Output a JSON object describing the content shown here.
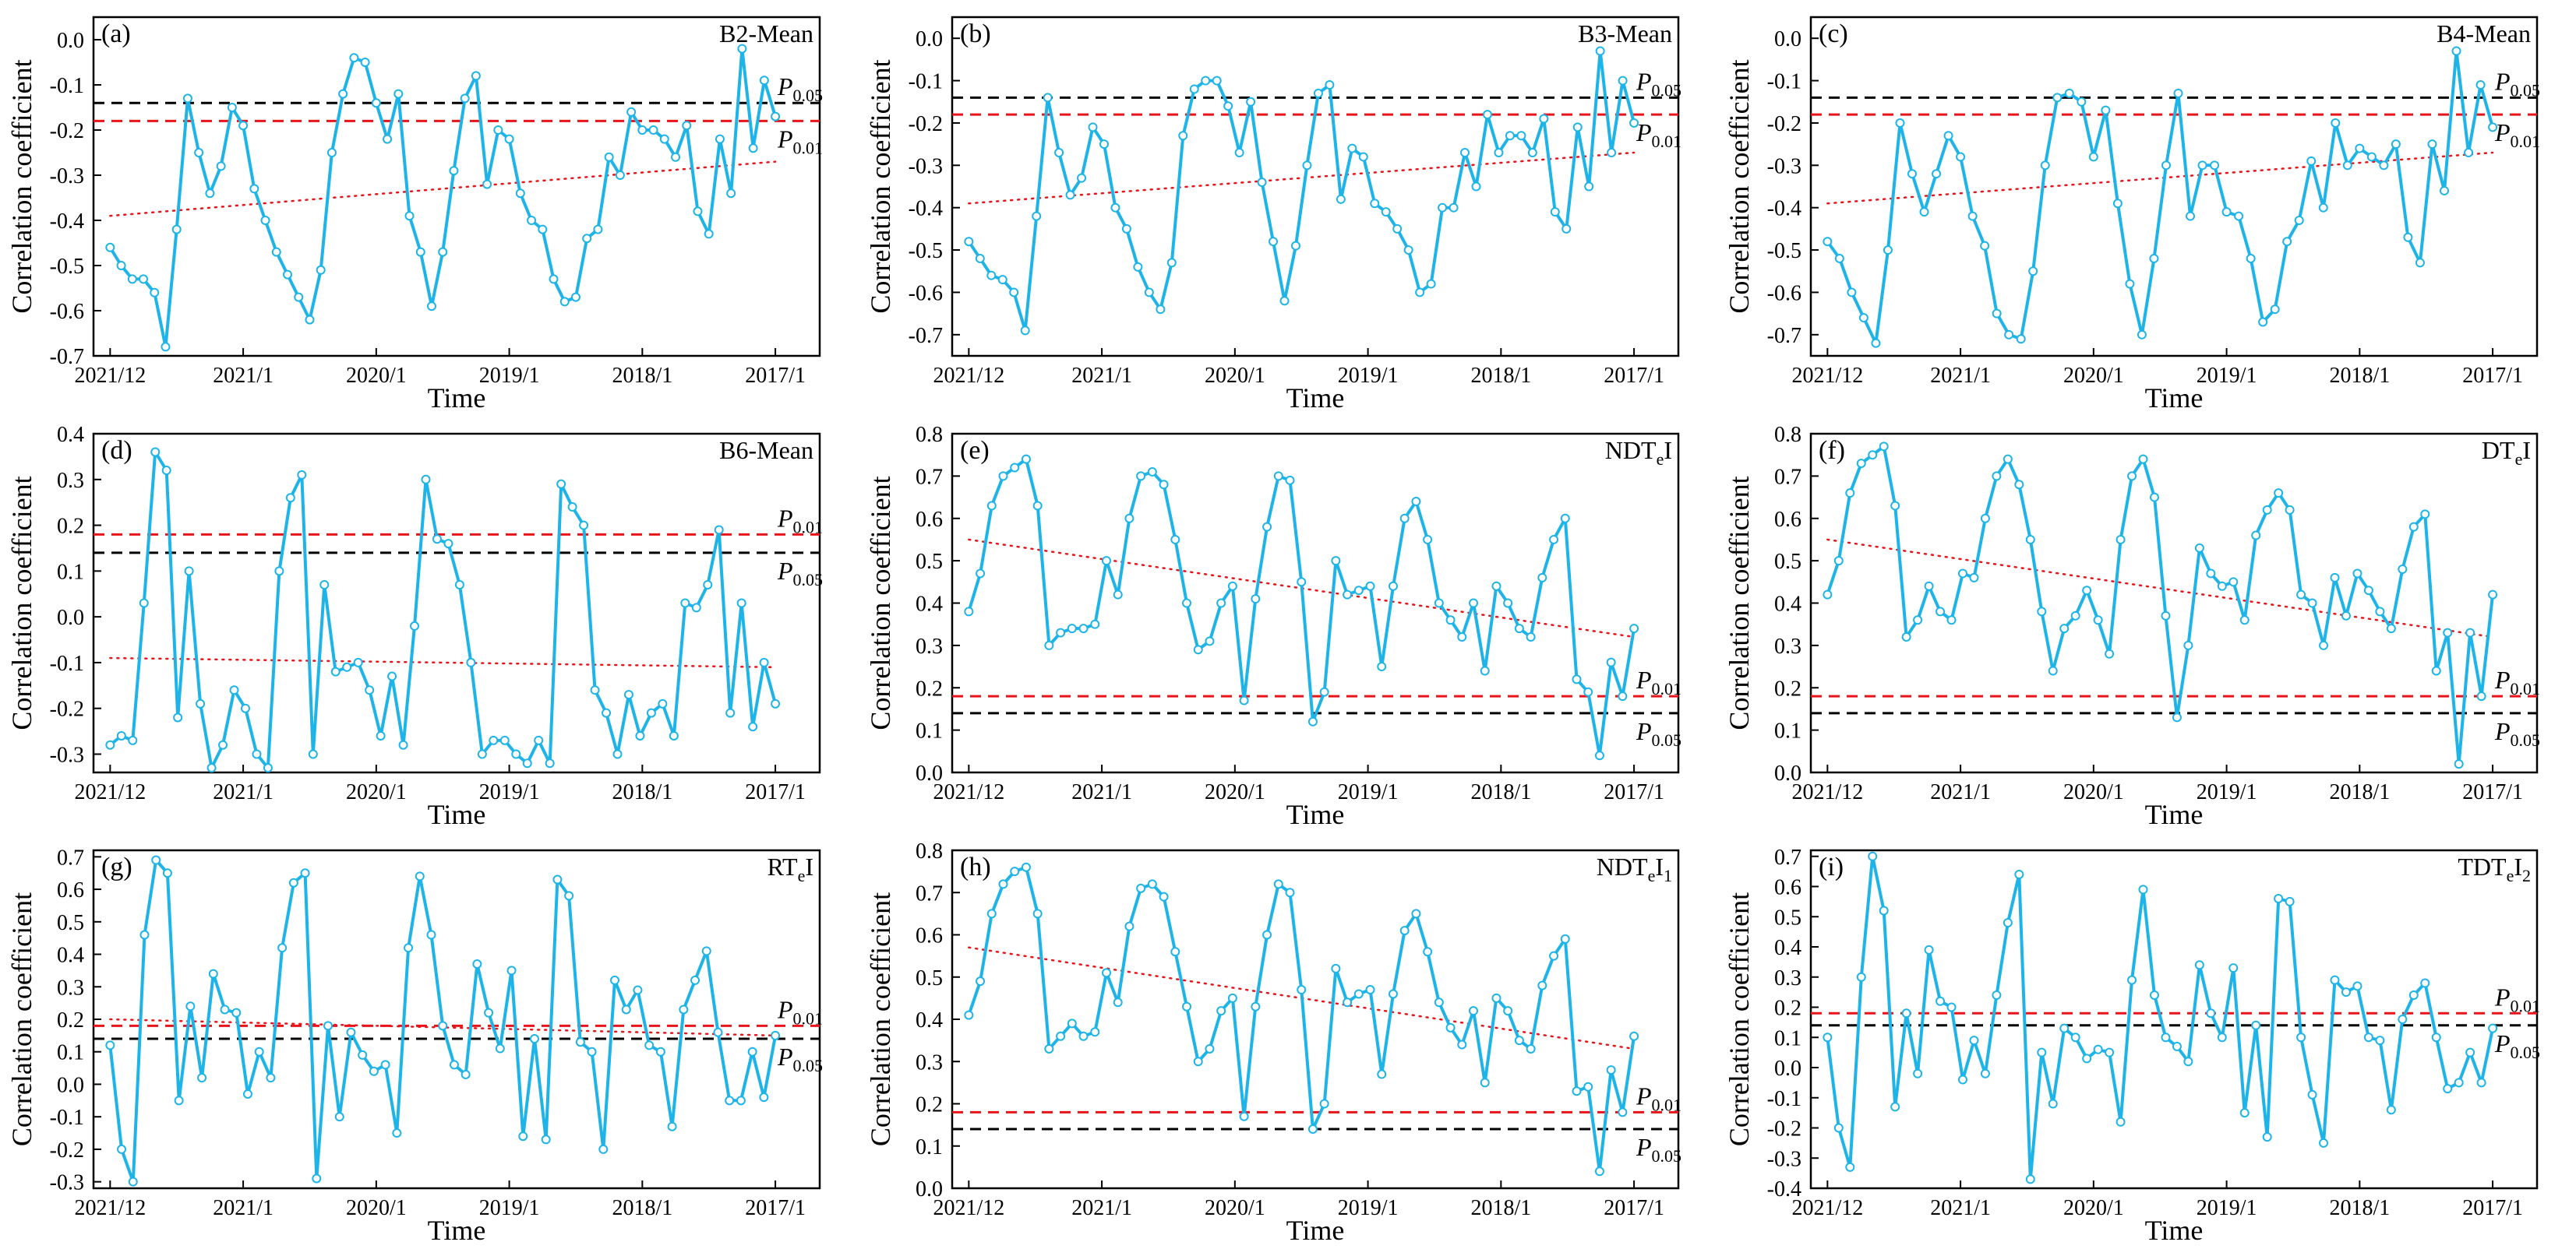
{
  "axis_labels": {
    "x": "Time",
    "y": "Correlation coefficient"
  },
  "significance": {
    "p05": "0.05",
    "p01": "0.01",
    "p_letter": "P"
  },
  "colors": {
    "series": "#1fb4e8",
    "trend": "#e8141a",
    "p01": "#e8141a",
    "p05": "#000000"
  },
  "chart_data": [
    {
      "type": "line",
      "tag": "(a)",
      "name": "B2-Mean",
      "p_side": "above",
      "ylim": [
        -0.7,
        0.05
      ],
      "yticks": [
        -0.7,
        -0.6,
        -0.5,
        -0.4,
        -0.3,
        -0.2,
        -0.1,
        0.0
      ],
      "xticks": [
        {
          "x": 0,
          "label": "2021/12"
        },
        {
          "x": 12,
          "label": "2021/1"
        },
        {
          "x": 24,
          "label": "2020/1"
        },
        {
          "x": 36,
          "label": "2019/1"
        },
        {
          "x": 48,
          "label": "2018/1"
        },
        {
          "x": 60,
          "label": "2017/1"
        }
      ],
      "p05": -0.14,
      "p01": -0.18,
      "trend": [
        -0.39,
        -0.27
      ],
      "values": [
        -0.46,
        -0.5,
        -0.53,
        -0.53,
        -0.56,
        -0.68,
        -0.42,
        -0.13,
        -0.25,
        -0.34,
        -0.28,
        -0.15,
        -0.19,
        -0.33,
        -0.4,
        -0.47,
        -0.52,
        -0.57,
        -0.62,
        -0.51,
        -0.25,
        -0.12,
        -0.04,
        -0.05,
        -0.14,
        -0.22,
        -0.12,
        -0.39,
        -0.47,
        -0.59,
        -0.47,
        -0.29,
        -0.13,
        -0.08,
        -0.32,
        -0.2,
        -0.22,
        -0.34,
        -0.4,
        -0.42,
        -0.53,
        -0.58,
        -0.57,
        -0.44,
        -0.42,
        -0.26,
        -0.3,
        -0.16,
        -0.2,
        -0.2,
        -0.22,
        -0.26,
        -0.19,
        -0.38,
        -0.43,
        -0.22,
        -0.34,
        -0.02,
        -0.24,
        -0.09,
        -0.17
      ]
    },
    {
      "type": "line",
      "tag": "(b)",
      "name": "B3-Mean",
      "p_side": "above",
      "ylim": [
        -0.75,
        0.05
      ],
      "yticks": [
        -0.7,
        -0.6,
        -0.5,
        -0.4,
        -0.3,
        -0.2,
        -0.1,
        0.0
      ],
      "xticks": [
        {
          "x": 0,
          "label": "2021/12"
        },
        {
          "x": 12,
          "label": "2021/1"
        },
        {
          "x": 24,
          "label": "2020/1"
        },
        {
          "x": 36,
          "label": "2019/1"
        },
        {
          "x": 48,
          "label": "2018/1"
        },
        {
          "x": 60,
          "label": "2017/1"
        }
      ],
      "p05": -0.14,
      "p01": -0.18,
      "trend": [
        -0.39,
        -0.27
      ],
      "values": [
        -0.48,
        -0.52,
        -0.56,
        -0.57,
        -0.6,
        -0.69,
        -0.42,
        -0.14,
        -0.27,
        -0.37,
        -0.33,
        -0.21,
        -0.25,
        -0.4,
        -0.45,
        -0.54,
        -0.6,
        -0.64,
        -0.53,
        -0.23,
        -0.12,
        -0.1,
        -0.1,
        -0.16,
        -0.27,
        -0.15,
        -0.34,
        -0.48,
        -0.62,
        -0.49,
        -0.3,
        -0.13,
        -0.11,
        -0.38,
        -0.26,
        -0.28,
        -0.39,
        -0.41,
        -0.45,
        -0.5,
        -0.6,
        -0.58,
        -0.4,
        -0.4,
        -0.27,
        -0.35,
        -0.18,
        -0.27,
        -0.23,
        -0.23,
        -0.27,
        -0.19,
        -0.41,
        -0.45,
        -0.21,
        -0.35,
        -0.03,
        -0.27,
        -0.1,
        -0.2
      ]
    },
    {
      "type": "line",
      "tag": "(c)",
      "name": "B4-Mean",
      "p_side": "above",
      "ylim": [
        -0.75,
        0.05
      ],
      "yticks": [
        -0.7,
        -0.6,
        -0.5,
        -0.4,
        -0.3,
        -0.2,
        -0.1,
        0.0
      ],
      "xticks": [
        {
          "x": 0,
          "label": "2021/12"
        },
        {
          "x": 12,
          "label": "2021/1"
        },
        {
          "x": 24,
          "label": "2020/1"
        },
        {
          "x": 36,
          "label": "2019/1"
        },
        {
          "x": 48,
          "label": "2018/1"
        },
        {
          "x": 60,
          "label": "2017/1"
        }
      ],
      "p05": -0.14,
      "p01": -0.18,
      "trend": [
        -0.39,
        -0.27
      ],
      "values": [
        -0.48,
        -0.52,
        -0.6,
        -0.66,
        -0.72,
        -0.5,
        -0.2,
        -0.32,
        -0.41,
        -0.32,
        -0.23,
        -0.28,
        -0.42,
        -0.49,
        -0.65,
        -0.7,
        -0.71,
        -0.55,
        -0.3,
        -0.14,
        -0.13,
        -0.15,
        -0.28,
        -0.17,
        -0.39,
        -0.58,
        -0.7,
        -0.52,
        -0.3,
        -0.13,
        -0.42,
        -0.3,
        -0.3,
        -0.41,
        -0.42,
        -0.52,
        -0.67,
        -0.64,
        -0.48,
        -0.43,
        -0.29,
        -0.4,
        -0.2,
        -0.3,
        -0.26,
        -0.28,
        -0.3,
        -0.25,
        -0.47,
        -0.53,
        -0.25,
        -0.36,
        -0.03,
        -0.27,
        -0.11,
        -0.21
      ]
    },
    {
      "type": "line",
      "tag": "(d)",
      "name": "B6-Mean",
      "p_side": "below",
      "ylim": [
        -0.34,
        0.4
      ],
      "yticks": [
        -0.3,
        -0.2,
        -0.1,
        0.0,
        0.1,
        0.2,
        0.3,
        0.4
      ],
      "xticks": [
        {
          "x": 0,
          "label": "2021/12"
        },
        {
          "x": 12,
          "label": "2021/1"
        },
        {
          "x": 24,
          "label": "2020/1"
        },
        {
          "x": 36,
          "label": "2019/1"
        },
        {
          "x": 48,
          "label": "2018/1"
        },
        {
          "x": 60,
          "label": "2017/1"
        }
      ],
      "p05": 0.14,
      "p01": 0.18,
      "trend": [
        -0.09,
        -0.11
      ],
      "values": [
        -0.28,
        -0.26,
        -0.27,
        0.03,
        0.36,
        0.32,
        -0.22,
        0.1,
        -0.19,
        -0.33,
        -0.28,
        -0.16,
        -0.2,
        -0.3,
        -0.33,
        0.1,
        0.26,
        0.31,
        -0.3,
        0.07,
        -0.12,
        -0.11,
        -0.1,
        -0.16,
        -0.26,
        -0.13,
        -0.28,
        -0.02,
        0.3,
        0.17,
        0.16,
        0.07,
        -0.1,
        -0.3,
        -0.27,
        -0.27,
        -0.3,
        -0.32,
        -0.27,
        -0.32,
        0.29,
        0.24,
        0.2,
        -0.16,
        -0.21,
        -0.3,
        -0.17,
        -0.26,
        -0.21,
        -0.19,
        -0.26,
        0.03,
        0.02,
        0.07,
        0.19,
        -0.21,
        0.03,
        -0.24,
        -0.1,
        -0.19
      ]
    },
    {
      "type": "line",
      "tag": "(e)",
      "name": "NDT",
      "name_sub": "e",
      "name_tail": "I",
      "name_sub2": "",
      "p_side": "above",
      "ylim": [
        0.0,
        0.8
      ],
      "yticks": [
        0.0,
        0.1,
        0.2,
        0.3,
        0.4,
        0.5,
        0.6,
        0.7,
        0.8
      ],
      "xticks": [
        {
          "x": 0,
          "label": "2021/12"
        },
        {
          "x": 12,
          "label": "2021/1"
        },
        {
          "x": 24,
          "label": "2020/1"
        },
        {
          "x": 36,
          "label": "2019/1"
        },
        {
          "x": 48,
          "label": "2018/1"
        },
        {
          "x": 60,
          "label": "2017/1"
        }
      ],
      "p05": 0.14,
      "p01": 0.18,
      "trend": [
        0.55,
        0.32
      ],
      "values": [
        0.38,
        0.47,
        0.63,
        0.7,
        0.72,
        0.74,
        0.63,
        0.3,
        0.33,
        0.34,
        0.34,
        0.35,
        0.5,
        0.42,
        0.6,
        0.7,
        0.71,
        0.68,
        0.55,
        0.4,
        0.29,
        0.31,
        0.4,
        0.44,
        0.17,
        0.41,
        0.58,
        0.7,
        0.69,
        0.45,
        0.12,
        0.19,
        0.5,
        0.42,
        0.43,
        0.44,
        0.25,
        0.44,
        0.6,
        0.64,
        0.55,
        0.4,
        0.36,
        0.32,
        0.4,
        0.24,
        0.44,
        0.4,
        0.34,
        0.32,
        0.46,
        0.55,
        0.6,
        0.22,
        0.19,
        0.04,
        0.26,
        0.18,
        0.34
      ]
    },
    {
      "type": "line",
      "tag": "(f)",
      "name": "DT",
      "name_sub": "e",
      "name_tail": "I",
      "name_sub2": "",
      "p_side": "above",
      "ylim": [
        0.0,
        0.8
      ],
      "yticks": [
        0.0,
        0.1,
        0.2,
        0.3,
        0.4,
        0.5,
        0.6,
        0.7,
        0.8
      ],
      "xticks": [
        {
          "x": 0,
          "label": "2021/12"
        },
        {
          "x": 12,
          "label": "2021/1"
        },
        {
          "x": 24,
          "label": "2020/1"
        },
        {
          "x": 36,
          "label": "2019/1"
        },
        {
          "x": 48,
          "label": "2018/1"
        },
        {
          "x": 60,
          "label": "2017/1"
        }
      ],
      "p05": 0.14,
      "p01": 0.18,
      "trend": [
        0.55,
        0.32
      ],
      "values": [
        0.42,
        0.5,
        0.66,
        0.73,
        0.75,
        0.77,
        0.63,
        0.32,
        0.36,
        0.44,
        0.38,
        0.36,
        0.47,
        0.46,
        0.6,
        0.7,
        0.74,
        0.68,
        0.55,
        0.38,
        0.24,
        0.34,
        0.37,
        0.43,
        0.36,
        0.28,
        0.55,
        0.7,
        0.74,
        0.65,
        0.37,
        0.13,
        0.3,
        0.53,
        0.47,
        0.44,
        0.45,
        0.36,
        0.56,
        0.62,
        0.66,
        0.62,
        0.42,
        0.4,
        0.3,
        0.46,
        0.37,
        0.47,
        0.43,
        0.38,
        0.34,
        0.48,
        0.58,
        0.61,
        0.24,
        0.33,
        0.02,
        0.33,
        0.18,
        0.42
      ]
    },
    {
      "type": "line",
      "tag": "(g)",
      "name": "RT",
      "name_sub": "e",
      "name_tail": "I",
      "name_sub2": "",
      "p_side": "below",
      "ylim": [
        -0.32,
        0.72
      ],
      "yticks": [
        -0.3,
        -0.2,
        -0.1,
        0.0,
        0.1,
        0.2,
        0.3,
        0.4,
        0.5,
        0.6,
        0.7
      ],
      "xticks": [
        {
          "x": 0,
          "label": "2021/12"
        },
        {
          "x": 12,
          "label": "2021/1"
        },
        {
          "x": 24,
          "label": "2020/1"
        },
        {
          "x": 36,
          "label": "2019/1"
        },
        {
          "x": 48,
          "label": "2018/1"
        },
        {
          "x": 60,
          "label": "2017/1"
        }
      ],
      "p05": 0.14,
      "p01": 0.18,
      "trend": [
        0.2,
        0.15
      ],
      "values": [
        0.12,
        -0.2,
        -0.3,
        0.46,
        0.69,
        0.65,
        -0.05,
        0.24,
        0.02,
        0.34,
        0.23,
        0.22,
        -0.03,
        0.1,
        0.02,
        0.42,
        0.62,
        0.65,
        -0.29,
        0.18,
        -0.1,
        0.16,
        0.09,
        0.04,
        0.06,
        -0.15,
        0.42,
        0.64,
        0.46,
        0.18,
        0.06,
        0.03,
        0.37,
        0.22,
        0.11,
        0.35,
        -0.16,
        0.14,
        -0.17,
        0.63,
        0.58,
        0.13,
        0.1,
        -0.2,
        0.32,
        0.23,
        0.29,
        0.12,
        0.1,
        -0.13,
        0.23,
        0.32,
        0.41,
        0.16,
        -0.05,
        -0.05,
        0.1,
        -0.04,
        0.15
      ]
    },
    {
      "type": "line",
      "tag": "(h)",
      "name": "NDT",
      "name_sub": "e",
      "name_tail": "I",
      "name_sub2": "1",
      "p_side": "above",
      "ylim": [
        0.0,
        0.8
      ],
      "yticks": [
        0.0,
        0.1,
        0.2,
        0.3,
        0.4,
        0.5,
        0.6,
        0.7,
        0.8
      ],
      "xticks": [
        {
          "x": 0,
          "label": "2021/12"
        },
        {
          "x": 12,
          "label": "2021/1"
        },
        {
          "x": 24,
          "label": "2020/1"
        },
        {
          "x": 36,
          "label": "2019/1"
        },
        {
          "x": 48,
          "label": "2018/1"
        },
        {
          "x": 60,
          "label": "2017/1"
        }
      ],
      "p05": 0.14,
      "p01": 0.18,
      "trend": [
        0.57,
        0.33
      ],
      "values": [
        0.41,
        0.49,
        0.65,
        0.72,
        0.75,
        0.76,
        0.65,
        0.33,
        0.36,
        0.39,
        0.36,
        0.37,
        0.51,
        0.44,
        0.62,
        0.71,
        0.72,
        0.69,
        0.56,
        0.43,
        0.3,
        0.33,
        0.42,
        0.45,
        0.17,
        0.43,
        0.6,
        0.72,
        0.7,
        0.47,
        0.14,
        0.2,
        0.52,
        0.44,
        0.46,
        0.47,
        0.27,
        0.46,
        0.61,
        0.65,
        0.56,
        0.44,
        0.38,
        0.34,
        0.42,
        0.25,
        0.45,
        0.42,
        0.35,
        0.33,
        0.48,
        0.55,
        0.59,
        0.23,
        0.24,
        0.04,
        0.28,
        0.18,
        0.36
      ]
    },
    {
      "type": "line",
      "tag": "(i)",
      "name": "TDT",
      "name_sub": "e",
      "name_tail": "I",
      "name_sub2": "2",
      "p_side": "below",
      "ylim": [
        -0.4,
        0.72
      ],
      "yticks": [
        -0.4,
        -0.3,
        -0.2,
        -0.1,
        0.0,
        0.1,
        0.2,
        0.3,
        0.4,
        0.5,
        0.6,
        0.7
      ],
      "xticks": [
        {
          "x": 0,
          "label": "2021/12"
        },
        {
          "x": 12,
          "label": "2021/1"
        },
        {
          "x": 24,
          "label": "2020/1"
        },
        {
          "x": 36,
          "label": "2019/1"
        },
        {
          "x": 48,
          "label": "2018/1"
        },
        {
          "x": 60,
          "label": "2017/1"
        }
      ],
      "p05": 0.14,
      "p01": 0.18,
      "trend": null,
      "values": [
        0.1,
        -0.2,
        -0.33,
        0.3,
        0.7,
        0.52,
        -0.13,
        0.18,
        -0.02,
        0.39,
        0.22,
        0.2,
        -0.04,
        0.09,
        -0.02,
        0.24,
        0.48,
        0.64,
        -0.37,
        0.05,
        -0.12,
        0.13,
        0.1,
        0.03,
        0.06,
        0.05,
        -0.18,
        0.29,
        0.59,
        0.24,
        0.1,
        0.07,
        0.02,
        0.34,
        0.18,
        0.1,
        0.33,
        -0.15,
        0.14,
        -0.23,
        0.56,
        0.55,
        0.1,
        -0.09,
        -0.25,
        0.29,
        0.25,
        0.27,
        0.1,
        0.09,
        -0.14,
        0.16,
        0.24,
        0.28,
        0.1,
        -0.07,
        -0.05,
        0.05,
        -0.05,
        0.13
      ]
    }
  ]
}
